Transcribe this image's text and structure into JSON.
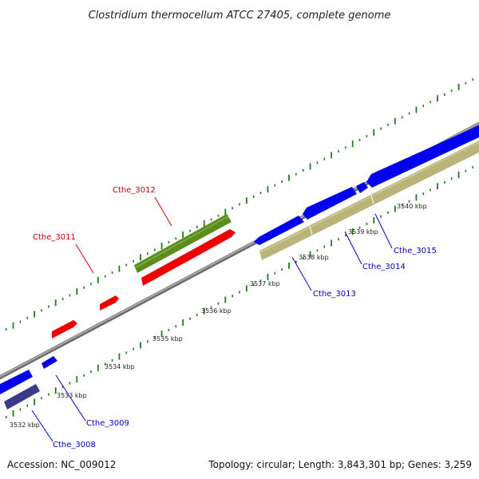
{
  "title": "Clostridium thermocellum ATCC 27405, complete genome",
  "accession": "Accession: NC_009012",
  "summary": "Topology: circular; Length: 3,843,301 bp; Genes: 3,259",
  "colors": {
    "backbone": "#8c8c8c",
    "forward_cds": "#0000ee",
    "reverse_cds": "#ee0000",
    "green_feature": "#5a8c1e",
    "tan_feature": "#b8b47a",
    "navy_feature": "#3a3a8a",
    "tick": "#1e7d1e",
    "label_blue": "#0000cc",
    "label_red": "#cc0000"
  },
  "scale_labels": [
    "3532 kbp",
    "3533 kbp",
    "3534 kbp",
    "3535 kbp",
    "3536 kbp",
    "3537 kbp",
    "3538 kbp",
    "3539 kbp",
    "3540 kbp"
  ],
  "gene_labels": [
    {
      "text": "Cthe_3008",
      "strand": "forward"
    },
    {
      "text": "Cthe_3009",
      "strand": "forward"
    },
    {
      "text": "Cthe_3011",
      "strand": "reverse"
    },
    {
      "text": "Cthe_3012",
      "strand": "reverse"
    },
    {
      "text": "Cthe_3013",
      "strand": "forward"
    },
    {
      "text": "Cthe_3014",
      "strand": "forward"
    },
    {
      "text": "Cthe_3015",
      "strand": "forward"
    }
  ]
}
